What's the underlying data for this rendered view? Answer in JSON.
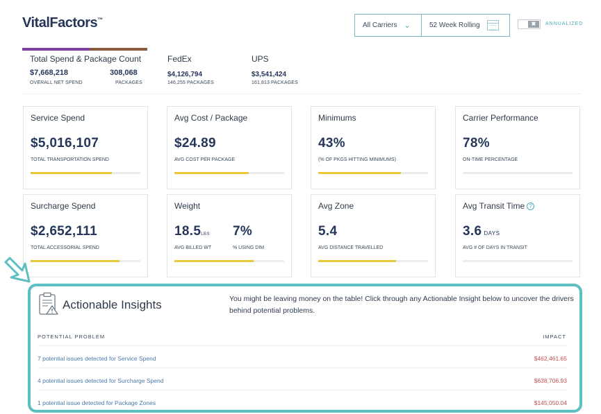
{
  "brand": {
    "name": "VitalFactors",
    "tm": "™"
  },
  "filters": {
    "carrier": "All Carriers",
    "period": "52 Week Rolling",
    "annualized_label": "ANNUALIZED",
    "toggle_glyph": "✖"
  },
  "summary": {
    "title": "Total Spend & Package Count",
    "net_spend": "$7,668,218",
    "net_spend_label": "OVERALL NET SPEND",
    "packages": "308,068",
    "packages_label": "PACKAGES",
    "carriers": [
      {
        "name": "FedEx",
        "spend": "$4,126,794",
        "packages": "146,255 PACKAGES",
        "color": "#7a3fa0"
      },
      {
        "name": "UPS",
        "spend": "$3,541,424",
        "packages": "161,813 PACKAGES",
        "color": "#8a5a3a"
      }
    ]
  },
  "cards": [
    {
      "title": "Service Spend",
      "value": "$5,016,107",
      "sub": "TOTAL TRANSPORTATION SPEND",
      "level": 0.74
    },
    {
      "title": "Avg Cost / Package",
      "value": "$24.89",
      "sub": "AVG COST PER PACKAGE",
      "level": 0.68
    },
    {
      "title": "Minimums",
      "value": "43%",
      "sub": "(% OF PKGS HITTING MINIMUMS)",
      "level": 0.75
    },
    {
      "title": "Carrier Performance",
      "value": "78%",
      "sub": "ON-TIME PERCENTAGE",
      "level": 0
    },
    {
      "title": "Surcharge Spend",
      "value": "$2,652,111",
      "sub": "TOTAL ACCESSORIAL SPEND",
      "level": 0.81
    },
    {
      "title": "Weight",
      "value": "18.5",
      "unit": "LBS",
      "value2": "7%",
      "sub": "AVG BILLED WT",
      "sub2": "% USING DIM",
      "level": 0.72
    },
    {
      "title": "Avg Zone",
      "value": "5.4",
      "sub": "AVG DISTANCE TRAVELLED",
      "level": 0.71
    },
    {
      "title": "Avg Transit Time",
      "value": "3.6",
      "unit": "DAYS",
      "sub": "AVG # OF DAYS IN TRANSIT",
      "info": "?",
      "level": 0
    }
  ],
  "insights": {
    "title": "Actionable Insights",
    "message": "You might be leaving money on the table! Click through any Actionable Insight below to uncover the drivers behind potential problems.",
    "col_problem": "POTENTIAL PROBLEM",
    "col_impact": "IMPACT",
    "rows": [
      {
        "desc": "7 potential issues detected for Service Spend",
        "impact": "$462,461.65"
      },
      {
        "desc": "4 potential issues detected for Surcharge Spend",
        "impact": "$638,706.93"
      },
      {
        "desc": "1 potential issue detected for Package Zones",
        "impact": "$145,050.04"
      }
    ]
  },
  "colors": {
    "accent": "#5cbfc0",
    "bar_fill": "#e8c93a",
    "impact": "#c0504d",
    "link": "#4a7aa8"
  }
}
